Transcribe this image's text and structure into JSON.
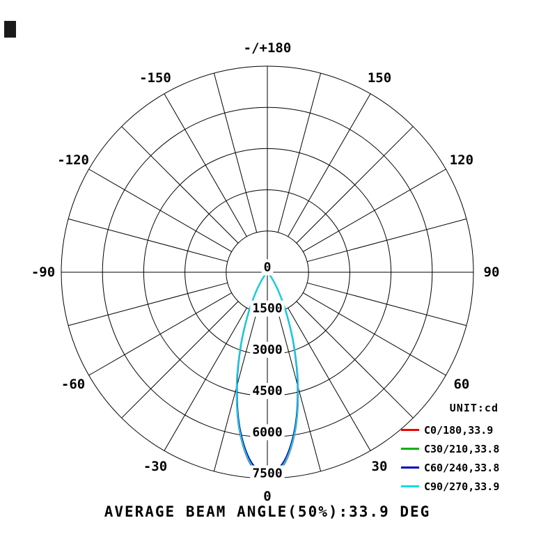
{
  "title": "AVERAGE BEAM ANGLE(50%):33.9 DEG",
  "legend": {
    "unit_label": "UNIT:cd",
    "items": [
      {
        "label": "C0/180,33.9",
        "color": "#f00000"
      },
      {
        "label": "C30/210,33.8",
        "color": "#00b400"
      },
      {
        "label": "C60/240,33.8",
        "color": "#0000c0"
      },
      {
        "label": "C90/270,33.9",
        "color": "#00dce8"
      }
    ]
  },
  "chart_data": {
    "type": "line",
    "subtype": "polar-intensity-distribution",
    "unit": "cd",
    "r_max": 7500,
    "radial_ticks": [
      0,
      1500,
      3000,
      4500,
      6000,
      7500
    ],
    "grid_angle_step_deg": 15,
    "average_beam_angle_50_deg": 33.9,
    "angle_labels": [
      {
        "angle": 180,
        "text": "-/+180"
      },
      {
        "angle": 150,
        "text": "150"
      },
      {
        "angle": 120,
        "text": "120"
      },
      {
        "angle": 90,
        "text": "90"
      },
      {
        "angle": 60,
        "text": "60"
      },
      {
        "angle": 30,
        "text": "30"
      },
      {
        "angle": 0,
        "text": "0"
      },
      {
        "angle": -30,
        "text": "-30"
      },
      {
        "angle": -60,
        "text": "-60"
      },
      {
        "angle": -90,
        "text": "-90"
      },
      {
        "angle": -120,
        "text": "-120"
      },
      {
        "angle": -150,
        "text": "-150"
      }
    ],
    "angles_deg": [
      -60,
      -55,
      -50,
      -45,
      -40,
      -35,
      -30,
      -25,
      -20,
      -15,
      -10,
      -5,
      0,
      5,
      10,
      15,
      20,
      25,
      30,
      35,
      40,
      45,
      50,
      55,
      60
    ],
    "series": [
      {
        "name": "C0/180",
        "beam_angle_50": 33.9,
        "color": "#f00000",
        "values": [
          0,
          5,
          18,
          56,
          157,
          388,
          851,
          1650,
          2840,
          4330,
          5853,
          7014,
          7450,
          7014,
          5853,
          4330,
          2840,
          1650,
          851,
          388,
          157,
          56,
          18,
          5,
          0
        ]
      },
      {
        "name": "C30/210",
        "beam_angle_50": 33.8,
        "color": "#00b400",
        "values": [
          0,
          5,
          18,
          56,
          156,
          385,
          844,
          1637,
          2817,
          4295,
          5806,
          6958,
          7390,
          6958,
          5806,
          4295,
          2817,
          1637,
          844,
          385,
          156,
          56,
          18,
          5,
          0
        ]
      },
      {
        "name": "C60/240",
        "beam_angle_50": 33.8,
        "color": "#0000c0",
        "values": [
          0,
          5,
          18,
          55,
          155,
          382,
          838,
          1625,
          2797,
          4265,
          5765,
          6909,
          7338,
          6909,
          5765,
          4265,
          2797,
          1625,
          838,
          382,
          155,
          55,
          18,
          5,
          0
        ]
      },
      {
        "name": "C90/270",
        "beam_angle_50": 33.9,
        "color": "#00dce8",
        "values": [
          0,
          5,
          18,
          56,
          156,
          386,
          848,
          1643,
          2829,
          4312,
          5830,
          6986,
          7420,
          6986,
          5830,
          4312,
          2829,
          1643,
          848,
          386,
          156,
          56,
          18,
          5,
          0
        ]
      }
    ]
  }
}
